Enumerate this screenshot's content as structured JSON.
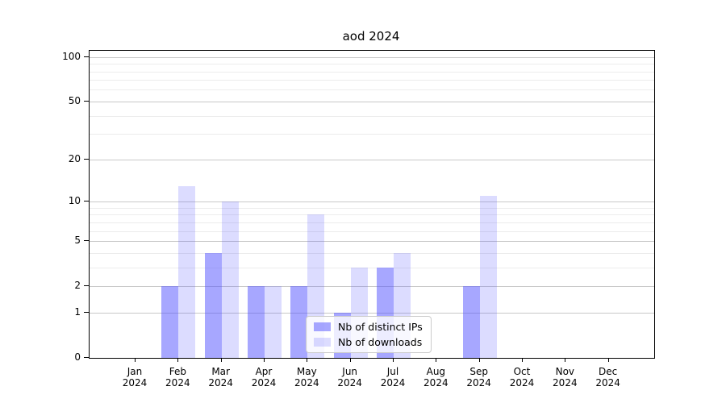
{
  "title": "aod 2024",
  "chart_data": {
    "type": "bar",
    "title": "aod 2024",
    "categories": [
      "Jan",
      "Feb",
      "Mar",
      "Apr",
      "May",
      "Jun",
      "Jul",
      "Aug",
      "Sep",
      "Oct",
      "Nov",
      "Dec"
    ],
    "year": "2024",
    "series": [
      {
        "name": "Nb of distinct IPs",
        "color": "rgba(80,80,255,0.5)",
        "values": [
          0,
          2,
          4,
          2,
          2,
          1,
          3,
          0,
          2,
          0,
          0,
          0
        ]
      },
      {
        "name": "Nb of downloads",
        "color": "rgba(80,80,255,0.2)",
        "values": [
          0,
          13,
          10,
          2,
          8,
          3,
          4,
          0,
          11,
          0,
          0,
          0
        ]
      }
    ],
    "xlabel": "",
    "ylabel": "",
    "yscale": "log1p",
    "ylim": [
      0,
      110
    ],
    "y_major_ticks": [
      0,
      1,
      2,
      5,
      10,
      20,
      50,
      100
    ],
    "y_minor_ticks": [
      3,
      4,
      6,
      7,
      8,
      9,
      30,
      40,
      60,
      70,
      80,
      90
    ],
    "grid": "on",
    "legend_position": "inside-bottom-center"
  },
  "colors": {
    "bar_distinct_ips": "rgba(80,80,255,0.5)",
    "bar_downloads": "rgba(80,80,255,0.2)",
    "grid_major": "#c8c8c8",
    "grid_minor": "#ececec",
    "spine": "#000000",
    "background": "#ffffff"
  }
}
